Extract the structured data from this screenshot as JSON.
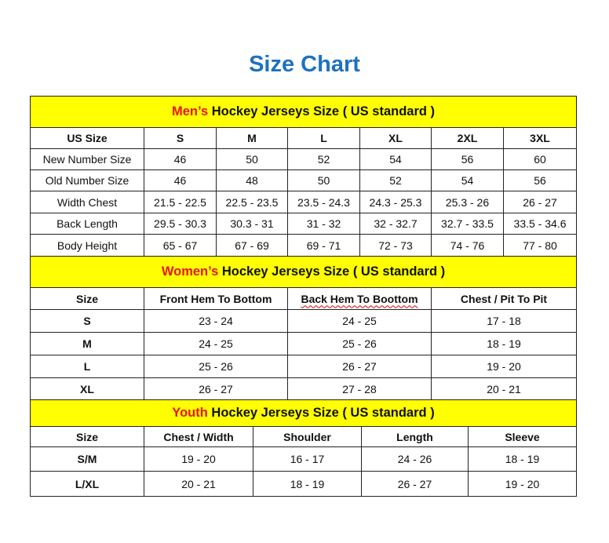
{
  "title": "Size Chart",
  "accent_color": "#1d72bf",
  "header_bg": "#ffff00",
  "men": {
    "heading_prefix": "Men’s",
    "heading_rest": " Hockey Jerseys Size ( US standard )",
    "columns": [
      "US Size",
      "S",
      "M",
      "L",
      "XL",
      "2XL",
      "3XL"
    ],
    "rows": [
      [
        "New Number Size",
        "46",
        "50",
        "52",
        "54",
        "56",
        "60"
      ],
      [
        "Old Number Size",
        "46",
        "48",
        "50",
        "52",
        "54",
        "56"
      ],
      [
        "Width Chest",
        "21.5 - 22.5",
        "22.5 - 23.5",
        "23.5 - 24.3",
        "24.3 - 25.3",
        "25.3 - 26",
        "26 - 27"
      ],
      [
        "Back Length",
        "29.5 - 30.3",
        "30.3 - 31",
        "31 - 32",
        "32 - 32.7",
        "32.7 - 33.5",
        "33.5 - 34.6"
      ],
      [
        "Body Height",
        "65 - 67",
        "67 - 69",
        "69 - 71",
        "72 - 73",
        "74 - 76",
        "77 - 80"
      ]
    ]
  },
  "women": {
    "heading_prefix": "Women’s",
    "heading_rest": " Hockey Jerseys Size ( US standard )",
    "columns": [
      "Size",
      "Front Hem To Bottom",
      "Back Hem To Boottom",
      "Chest / Pit To Pit"
    ],
    "rows": [
      [
        "S",
        "23 - 24",
        "24 - 25",
        "17 - 18"
      ],
      [
        "M",
        "24 - 25",
        "25 - 26",
        "18 - 19"
      ],
      [
        "L",
        "25 - 26",
        "26 - 27",
        "19 - 20"
      ],
      [
        "XL",
        "26 - 27",
        "27 - 28",
        "20 - 21"
      ]
    ]
  },
  "youth": {
    "heading_prefix": "Youth",
    "heading_rest": " Hockey Jerseys Size ( US standard )",
    "columns": [
      "Size",
      "Chest / Width",
      "Shoulder",
      "Length",
      "Sleeve"
    ],
    "rows": [
      [
        "S/M",
        "19 - 20",
        "16 - 17",
        "24 - 26",
        "18 - 19"
      ],
      [
        "L/XL",
        "20 - 21",
        "18 - 19",
        "26 - 27",
        "19 - 20"
      ]
    ]
  }
}
